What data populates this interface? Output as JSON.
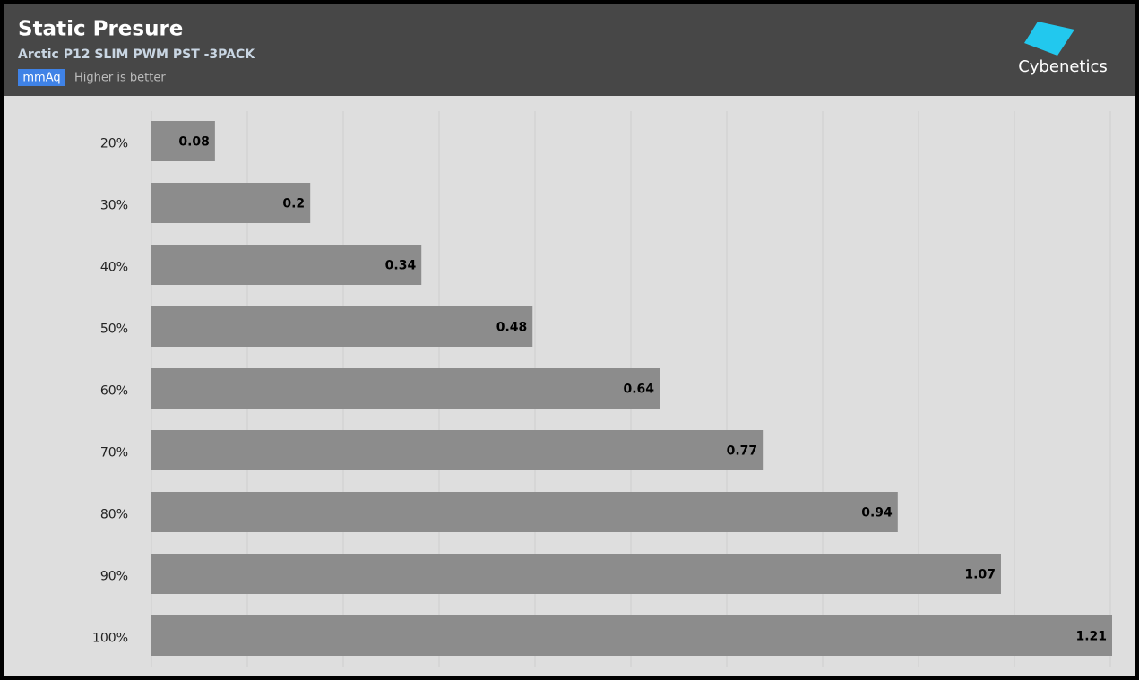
{
  "chart_data": {
    "type": "hbar",
    "title": "Static Presure",
    "subtitle": "Arctic P12 SLIM PWM PST -3PACK",
    "unit": "mmAq",
    "note": "Higher is better",
    "brand": "Cybenetics",
    "categories": [
      "20%",
      "30%",
      "40%",
      "50%",
      "60%",
      "70%",
      "80%",
      "90%",
      "100%"
    ],
    "values": [
      0.08,
      0.2,
      0.34,
      0.48,
      0.64,
      0.77,
      0.94,
      1.07,
      1.21
    ],
    "color": "#8c8c8c",
    "xlim": [
      0,
      1.21
    ],
    "grid": true
  }
}
